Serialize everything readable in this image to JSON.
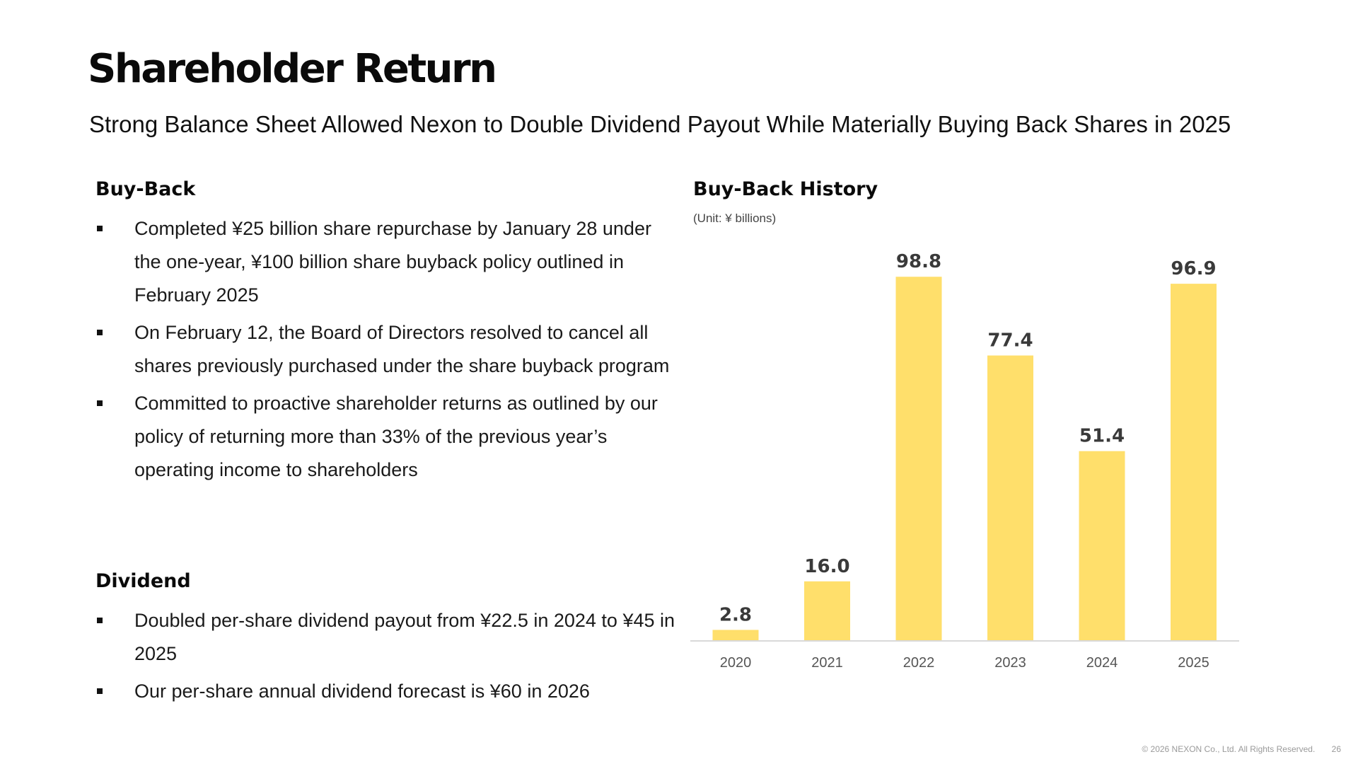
{
  "page": {
    "title": "Shareholder Return",
    "subtitle": "Strong Balance Sheet Allowed Nexon to Double Dividend Payout While Materially Buying Back Shares in 2025",
    "footer": {
      "copyright": "© 2026 NEXON Co., Ltd. All Rights Reserved.",
      "page_number": "26"
    }
  },
  "buyback": {
    "heading": "Buy-Back",
    "items": [
      "Completed ¥25 billion share repurchase by January 28 under the one-year, ¥100 billion share buyback policy outlined in February 2025",
      "On February 12, the Board of Directors resolved to cancel all shares previously purchased under the share buyback program",
      "Committed to proactive shareholder returns as outlined by our policy of returning more than 33% of the previous year’s operating income to shareholders"
    ]
  },
  "dividend": {
    "heading": "Dividend",
    "items": [
      "Doubled per-share dividend payout from ¥22.5 in 2024 to ¥45 in 2025",
      "Our per-share annual dividend forecast is ¥60 in 2026"
    ]
  },
  "chart_data": {
    "type": "bar",
    "title": "Buy-Back History",
    "unit": "(Unit: ¥ billions)",
    "categories": [
      "2020",
      "2021",
      "2022",
      "2023",
      "2024",
      "2025"
    ],
    "values": [
      2.8,
      16.0,
      98.8,
      77.4,
      51.4,
      96.9
    ],
    "data_labels": [
      "2.8",
      "16.0",
      "98.8",
      "77.4",
      "51.4",
      "96.9"
    ],
    "ylim": [
      0,
      100
    ],
    "grid": false,
    "bar_color": "#FFDF6B",
    "axis_color": "#d9d9d9",
    "label_color": "#3a3a3a",
    "tick_color": "#555555"
  }
}
